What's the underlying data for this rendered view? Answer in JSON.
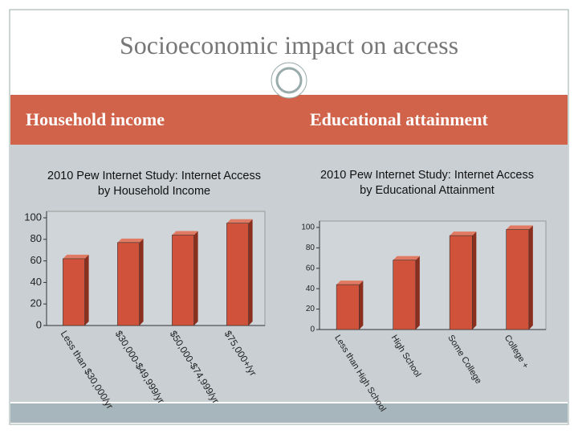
{
  "title": "Socioeconomic impact on access",
  "headers": [
    "Household income",
    "Educational attainment"
  ],
  "chart_data": [
    {
      "type": "bar",
      "title": "2010 Pew Internet Study: Internet Access by Household Income",
      "categories": [
        "Less than $30,000/yr",
        "$30,000-$49,999/yr",
        "$50,000-$74,999/yr",
        "$75,000+/yr"
      ],
      "values": [
        62,
        77,
        84,
        95
      ],
      "color": "#d0523a",
      "ylim": [
        0,
        100
      ],
      "yticks": [
        0,
        20,
        40,
        60,
        80,
        100
      ],
      "grid": false
    },
    {
      "type": "bar",
      "title": "2010 Pew Internet Study: Internet Access by Educational Attainment",
      "categories": [
        "Less than High School",
        "High School",
        "Some College",
        "College +"
      ],
      "values": [
        44,
        68,
        92,
        98
      ],
      "color": "#d0523a",
      "ylim": [
        0,
        100
      ],
      "yticks": [
        0,
        20,
        40,
        60,
        80,
        100
      ],
      "grid": false
    }
  ]
}
